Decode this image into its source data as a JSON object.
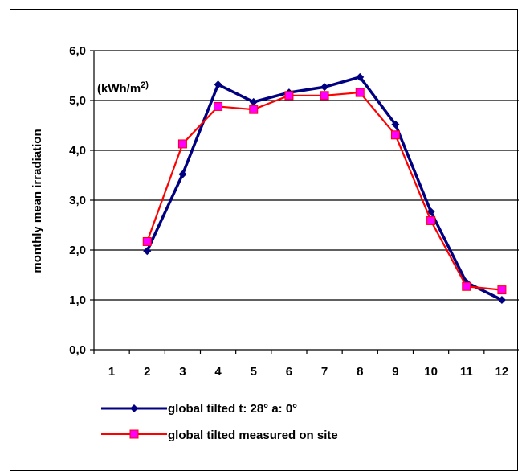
{
  "chart_data": {
    "type": "line",
    "ylabel": "monthly mean irradiation",
    "unit_annotation": {
      "base": "(kWh/m",
      "sup": "2)"
    },
    "xlabel": "",
    "categories": [
      "1",
      "2",
      "3",
      "4",
      "5",
      "6",
      "7",
      "8",
      "9",
      "10",
      "11",
      "12"
    ],
    "ylim": [
      0,
      6
    ],
    "yticks": [
      "0,0",
      "1,0",
      "2,0",
      "3,0",
      "4,0",
      "5,0",
      "6,0"
    ],
    "grid": true,
    "legend_position": "bottom",
    "series": [
      {
        "name": "global tilted t: 28° a: 0°",
        "color": "#000080",
        "marker": "diamond",
        "values": [
          null,
          1.98,
          3.52,
          5.32,
          4.97,
          5.16,
          5.27,
          5.47,
          4.52,
          2.77,
          1.35,
          1.0
        ]
      },
      {
        "name": "global tilted measured on site",
        "color": "#ff0000",
        "marker_fill": "#ff00ff",
        "marker": "square",
        "values": [
          null,
          2.17,
          4.13,
          4.88,
          4.82,
          5.1,
          5.1,
          5.16,
          4.31,
          2.59,
          1.27,
          1.2
        ]
      }
    ]
  }
}
